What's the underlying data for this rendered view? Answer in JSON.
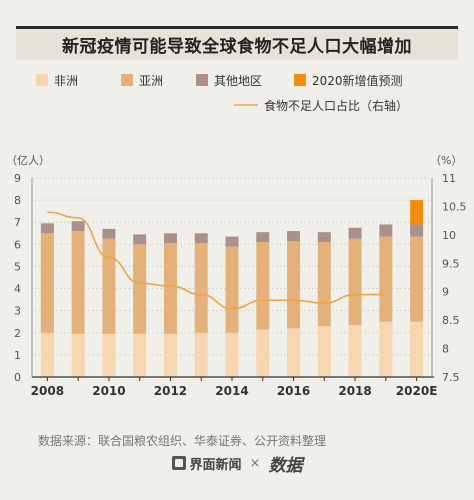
{
  "title": "新冠疫情可能导致全球食物不足人口大幅增加",
  "source": "数据来源：联合国粮农组织、华泰证券、公开资料整理",
  "footer": {
    "brand1": "界面新闻",
    "separator": "×",
    "brand2": "数据"
  },
  "chart_data": {
    "type": "bar",
    "stacked": true,
    "categories": [
      "2008",
      "2009",
      "2010",
      "2011",
      "2012",
      "2013",
      "2014",
      "2015",
      "2016",
      "2017",
      "2018",
      "2019",
      "2020E"
    ],
    "x_tick_labels": [
      "2008",
      "2010",
      "2012",
      "2014",
      "2016",
      "2018",
      "2020E"
    ],
    "left_axis": {
      "unit_label": "（亿人）",
      "ylim": [
        0,
        9
      ],
      "ticks": [
        0,
        1,
        2,
        3,
        4,
        5,
        6,
        7,
        8,
        9
      ]
    },
    "right_axis": {
      "unit_label": "（%）",
      "ylim": [
        7.5,
        11
      ],
      "ticks": [
        "7.5",
        "8",
        "8.5",
        "9",
        "9.5",
        "10",
        "10.5",
        "11"
      ]
    },
    "series": [
      {
        "name": "非洲",
        "color": "#f5d6b0",
        "values": [
          2.0,
          1.95,
          1.95,
          1.95,
          1.95,
          2.0,
          2.0,
          2.15,
          2.2,
          2.3,
          2.35,
          2.5,
          2.5
        ]
      },
      {
        "name": "亚洲",
        "color": "#e3b179",
        "values": [
          4.5,
          4.65,
          4.3,
          4.05,
          4.1,
          4.05,
          3.9,
          3.95,
          3.95,
          3.8,
          3.9,
          3.85,
          3.85
        ]
      },
      {
        "name": "其他地区",
        "color": "#a9918a",
        "values": [
          0.45,
          0.45,
          0.45,
          0.45,
          0.45,
          0.45,
          0.45,
          0.45,
          0.45,
          0.45,
          0.5,
          0.55,
          0.55
        ]
      },
      {
        "name": "2020新增值预测",
        "color": "#f08c10",
        "values": [
          0,
          0,
          0,
          0,
          0,
          0,
          0,
          0,
          0,
          0,
          0,
          0,
          1.1
        ]
      }
    ],
    "line": {
      "name": "食物不足人口占比（右轴）",
      "color": "#eba54a",
      "axis": "right",
      "values": [
        10.4,
        10.3,
        9.6,
        9.15,
        9.1,
        8.95,
        8.7,
        8.85,
        8.85,
        8.8,
        8.95,
        8.95,
        null
      ]
    },
    "legend": {
      "position": "top"
    },
    "grid": true
  }
}
